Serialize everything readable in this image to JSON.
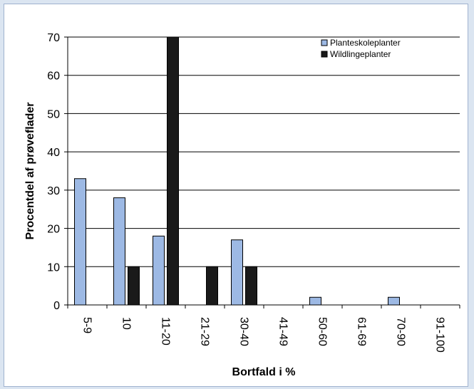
{
  "chart_data": {
    "type": "bar",
    "categories": [
      "5-9",
      "10",
      "11-20",
      "21-29",
      "30-40",
      "41-49",
      "50-60",
      "61-69",
      "70-90",
      "91-100"
    ],
    "series": [
      {
        "name": "Planteskoleplanter",
        "values": [
          33,
          28,
          18,
          0,
          17,
          0,
          2,
          0,
          2,
          0
        ],
        "color": "#9db9e4"
      },
      {
        "name": "Wildlingeplanter",
        "values": [
          0,
          10,
          70,
          10,
          10,
          0,
          0,
          0,
          0,
          0
        ],
        "color": "#1a1a1a"
      }
    ],
    "xlabel": "Bortfald i %",
    "ylabel": "Procentdel af prøveflader",
    "ylim": [
      0,
      70
    ],
    "yticks": [
      0,
      10,
      20,
      30,
      40,
      50,
      60,
      70
    ],
    "grid": true,
    "legend_position": "top-right"
  }
}
